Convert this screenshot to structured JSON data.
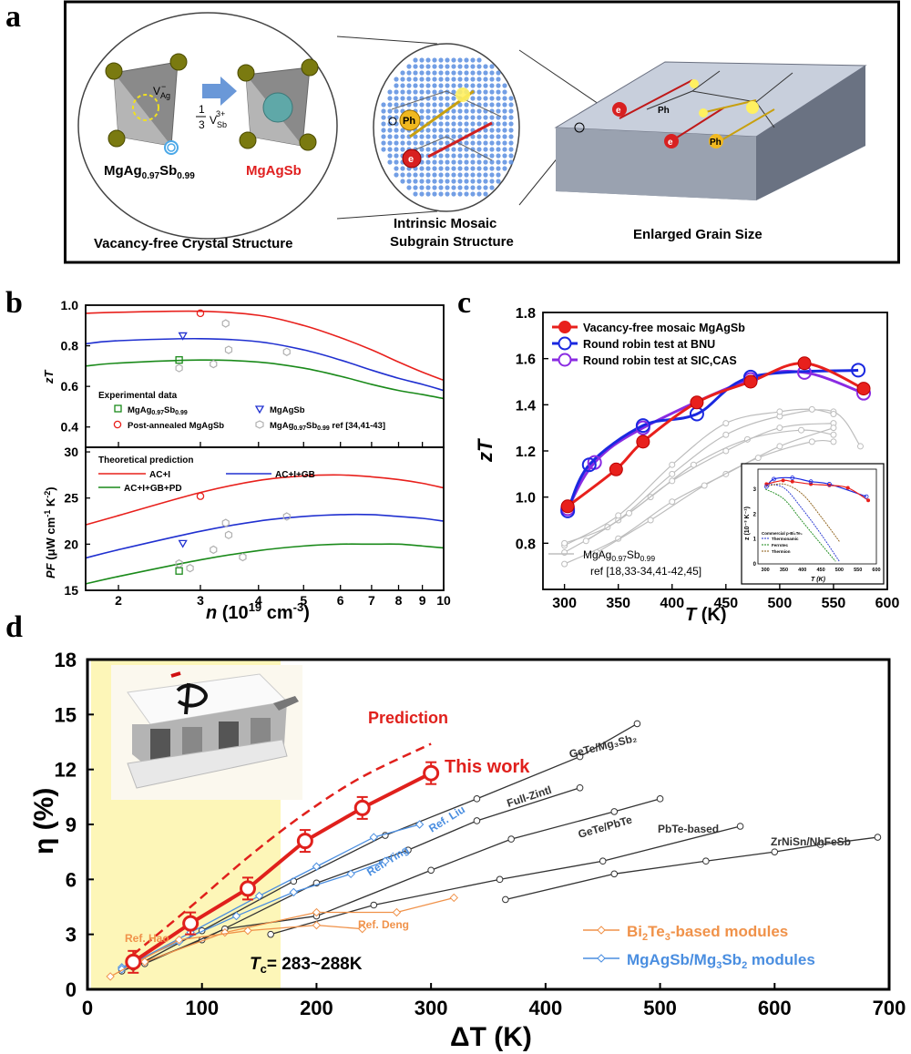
{
  "panels": {
    "a": "a",
    "b": "b",
    "c": "c",
    "d": "d"
  },
  "panel_a": {
    "vacancy_label": "V",
    "vacancy_sub": "Ag",
    "vacancy_sup": "−",
    "fraction_num": "1",
    "fraction_den": "3",
    "sb_vacancy_label": "V",
    "sb_vacancy_sub": "Sb",
    "sb_vacancy_sup": "3+",
    "compound_left_1": "MgAg",
    "compound_left_2": "0.97",
    "compound_left_3": "Sb",
    "compound_left_4": "0.99",
    "compound_right": "MgAgSb",
    "phonon": "Ph",
    "electron": "e",
    "caption_left": "Vacancy-free Crystal Structure",
    "caption_mid_1": "Intrinsic Mosaic",
    "caption_mid_2": "Subgrain Structure",
    "caption_right": "Enlarged Grain Size",
    "colors": {
      "right_compound": "#e02020",
      "atom": "#7a7a10",
      "grain": "#b8c2d6"
    }
  },
  "panel_b": {
    "top_ylabel": "zT",
    "top_yticks": [
      "0.4",
      "0.6",
      "0.8",
      "1.0"
    ],
    "legend_title": "Experimental data",
    "legend_items": [
      "MgAg0.97Sb0.99",
      "Post-annealed MgAgSb",
      "MgAgSb",
      "MgAg0.97Sb0.99 ref [34,41-43]"
    ],
    "legend_sq_1": "MgAg",
    "legend_sq_2": "0.97",
    "legend_sq_3": "Sb",
    "legend_sq_4": "0.99",
    "legend_circ": "Post-annealed MgAgSb",
    "legend_tri": "MgAgSb",
    "legend_hex_1": "MgAg",
    "legend_hex_2": "0.97",
    "legend_hex_3": "Sb",
    "legend_hex_4": "0.99",
    "legend_hex_5": " ref [34,41-43]",
    "bottom_title": "Theoretical prediction",
    "bottom_items": [
      "AC+I",
      "AC+I+GB",
      "AC+I+GB+PD"
    ],
    "bottom_ylabel_1": "PF",
    "bottom_ylabel_2": " (μW cm",
    "bottom_ylabel_3": "-1",
    "bottom_ylabel_4": " K",
    "bottom_ylabel_5": "-2",
    "bottom_ylabel_6": ")",
    "bottom_yticks": [
      "15",
      "20",
      "25",
      "30"
    ],
    "xticks": [
      "2",
      "3",
      "4",
      "5",
      "6",
      "7",
      "8",
      "9",
      "10"
    ],
    "xlabel_1": "n",
    "xlabel_2": " (10",
    "xlabel_3": "19",
    "xlabel_4": " cm",
    "xlabel_5": "-3",
    "xlabel_6": ")",
    "colors": {
      "ac_i": "#e8201c",
      "ac_i_gb": "#2030d0",
      "ac_i_gb_pd": "#1a8a1a",
      "ref": "#b0b0b0"
    }
  },
  "panel_c": {
    "ylabel": "zT",
    "xlabel": "T (K)",
    "xlabel_T": "T",
    "xlabel_K": " (K)",
    "yticks": [
      "0.8",
      "1.0",
      "1.2",
      "1.4",
      "1.6",
      "1.8"
    ],
    "xticks": [
      "300",
      "350",
      "400",
      "450",
      "500",
      "550",
      "600"
    ],
    "legend": [
      "Vacancy-free mosaic MgAgSb",
      "Round robin test at BNU",
      "Round robin test at SIC,CAS"
    ],
    "ref_label_1": "MgAg",
    "ref_label_2": "0.97",
    "ref_label_3": "Sb",
    "ref_label_4": "0.99",
    "ref_label_5": "ref [18,33-34,41-42,45]",
    "inset_ylabel": "z (10⁻³ K⁻¹)",
    "inset_xlabel": "T (K)",
    "inset_yticks": [
      "0",
      "1",
      "2",
      "3"
    ],
    "inset_xticks": [
      "300",
      "350",
      "400",
      "450",
      "500",
      "550",
      "600"
    ],
    "inset_legend": [
      "Commercial p-Bi₂Te₃",
      "Thermonamic",
      "Ferrotec",
      "Thermion"
    ],
    "colors": {
      "red": "#e8201c",
      "blue": "#1a28e0",
      "purple": "#8a2be2",
      "grey": "#bdbdbd"
    }
  },
  "panel_d": {
    "ylabel": "η (%)",
    "xlabel": "ΔT (K)",
    "yticks": [
      "0",
      "3",
      "6",
      "9",
      "12",
      "15",
      "18"
    ],
    "xticks": [
      "0",
      "100",
      "200",
      "300",
      "400",
      "500",
      "600",
      "700"
    ],
    "prediction": "Prediction",
    "this_work": "This work",
    "tc_1": "T",
    "tc_2": "c",
    "tc_3": "= 283~288K",
    "labels": [
      "GeTe/Mg₃Sb₂",
      "Full-Zintl",
      "GeTe/PbTe",
      "PbTe-based",
      "ZrNiSn/NbFeSb",
      "Ref. Ying",
      "Ref. Liu",
      "Ref. Deng",
      "Ref. Hao"
    ],
    "legend_bi_1": "Bi",
    "legend_bi_2": "2",
    "legend_bi_3": "Te",
    "legend_bi_4": "3",
    "legend_bi_5": "-based modules",
    "legend_mg_1": "MgAgSb/Mg",
    "legend_mg_2": "3",
    "legend_mg_3": "Sb",
    "legend_mg_4": "2",
    "legend_mg_5": " modules",
    "colors": {
      "red": "#e0201c",
      "orange": "#f0924a",
      "blue": "#4a8ee0",
      "black": "#333333",
      "highlight": "#fdf6b8"
    }
  },
  "chart_data": [
    {
      "type": "line",
      "title": "",
      "xlabel": "n (10^19 cm^-3)",
      "ylabel": "zT",
      "xscale": "log",
      "xlim": [
        1.7,
        10
      ],
      "ylim": [
        0.3,
        1.0
      ],
      "series": [
        {
          "name": "AC+I",
          "x": [
            1.7,
            2,
            3,
            4,
            5,
            6,
            7,
            8,
            9,
            10
          ],
          "values": [
            0.96,
            0.965,
            0.97,
            0.95,
            0.9,
            0.84,
            0.78,
            0.72,
            0.67,
            0.63
          ]
        },
        {
          "name": "AC+I+GB",
          "x": [
            1.7,
            2,
            3,
            4,
            5,
            6,
            7,
            8,
            9,
            10
          ],
          "values": [
            0.81,
            0.825,
            0.835,
            0.82,
            0.78,
            0.73,
            0.68,
            0.64,
            0.61,
            0.58
          ]
        },
        {
          "name": "AC+I+GB+PD",
          "x": [
            1.7,
            2,
            3,
            4,
            5,
            6,
            7,
            8,
            9,
            10
          ],
          "values": [
            0.7,
            0.715,
            0.73,
            0.72,
            0.69,
            0.65,
            0.61,
            0.58,
            0.56,
            0.54
          ]
        },
        {
          "name": "MgAg0.97Sb0.99",
          "x": [
            2.7
          ],
          "values": [
            0.73
          ]
        },
        {
          "name": "Post-annealed MgAgSb",
          "x": [
            3.0
          ],
          "values": [
            0.96
          ]
        },
        {
          "name": "MgAgSb",
          "x": [
            2.75
          ],
          "values": [
            0.85
          ]
        },
        {
          "name": "MgAg0.97Sb0.99 ref [34,41-43]",
          "x": [
            2.7,
            3.2,
            3.4,
            3.45,
            4.6
          ],
          "values": [
            0.69,
            0.71,
            0.91,
            0.78,
            0.77
          ]
        }
      ]
    },
    {
      "type": "line",
      "title": "",
      "xlabel": "n (10^19 cm^-3)",
      "ylabel": "PF (μW cm^-1 K^-2)",
      "xscale": "log",
      "xlim": [
        1.7,
        10
      ],
      "ylim": [
        15,
        30
      ],
      "series": [
        {
          "name": "AC+I",
          "x": [
            1.7,
            2,
            3,
            4,
            5,
            6,
            7,
            8,
            9,
            10
          ],
          "values": [
            22.1,
            23.1,
            25.6,
            26.9,
            27.4,
            27.5,
            27.3,
            27.0,
            26.6,
            26.1
          ]
        },
        {
          "name": "AC+I+GB",
          "x": [
            1.7,
            2,
            3,
            4,
            5,
            6,
            7,
            8,
            9,
            10
          ],
          "values": [
            18.5,
            19.4,
            21.4,
            22.5,
            23.0,
            23.2,
            23.2,
            23.0,
            22.8,
            22.5
          ]
        },
        {
          "name": "AC+I+GB+PD",
          "x": [
            1.7,
            2,
            3,
            4,
            5,
            6,
            7,
            8,
            9,
            10
          ],
          "values": [
            15.7,
            16.5,
            18.3,
            19.3,
            19.8,
            20.0,
            20.0,
            20.0,
            19.8,
            19.6
          ]
        },
        {
          "name": "MgAg0.97Sb0.99",
          "x": [
            2.7
          ],
          "values": [
            17.1
          ]
        },
        {
          "name": "Post-annealed MgAgSb",
          "x": [
            3.0
          ],
          "values": [
            25.2
          ]
        },
        {
          "name": "MgAgSb",
          "x": [
            2.75
          ],
          "values": [
            20.1
          ]
        },
        {
          "name": "MgAg0.97Sb0.99 ref [34,41-43]",
          "x": [
            2.7,
            2.85,
            3.2,
            3.4,
            3.45,
            3.7,
            4.6
          ],
          "values": [
            17.9,
            17.4,
            19.4,
            22.3,
            21.0,
            18.6,
            23.0
          ]
        }
      ]
    },
    {
      "type": "line",
      "title": "",
      "xlabel": "T (K)",
      "ylabel": "zT",
      "xlim": [
        280,
        600
      ],
      "ylim": [
        0.6,
        1.8
      ],
      "series": [
        {
          "name": "Vacancy-free mosaic MgAgSb",
          "x": [
            303,
            348,
            373,
            423,
            473,
            523,
            578
          ],
          "values": [
            0.96,
            1.12,
            1.24,
            1.41,
            1.5,
            1.58,
            1.47
          ]
        },
        {
          "name": "Round robin test at BNU",
          "x": [
            303,
            323,
            373,
            423,
            473,
            573
          ],
          "values": [
            0.94,
            1.14,
            1.31,
            1.36,
            1.52,
            1.55
          ]
        },
        {
          "name": "Round robin test at SIC,CAS",
          "x": [
            303,
            328,
            373,
            473,
            523,
            578
          ],
          "values": [
            0.95,
            1.15,
            1.3,
            1.51,
            1.54,
            1.45
          ]
        }
      ]
    },
    {
      "type": "line",
      "title": "",
      "xlabel": "ΔT (K)",
      "ylabel": "η (%)",
      "xlim": [
        0,
        700
      ],
      "ylim": [
        0,
        18
      ],
      "series": [
        {
          "name": "This work",
          "x": [
            40,
            90,
            140,
            190,
            240,
            300
          ],
          "values": [
            1.5,
            3.6,
            5.5,
            8.1,
            9.9,
            11.8
          ]
        },
        {
          "name": "Prediction",
          "x": [
            40,
            90,
            140,
            190,
            240,
            300
          ],
          "values": [
            1.9,
            4.5,
            7.2,
            9.6,
            11.6,
            13.4
          ]
        },
        {
          "name": "GeTe/Mg3Sb2",
          "x": [
            40,
            100,
            180,
            260,
            340,
            430,
            480
          ],
          "values": [
            1.2,
            3.2,
            5.9,
            8.4,
            10.4,
            12.7,
            14.5
          ]
        },
        {
          "name": "Full-Zintl",
          "x": [
            30,
            100,
            200,
            280,
            340,
            430
          ],
          "values": [
            1.0,
            2.7,
            5.8,
            7.6,
            9.2,
            11.0
          ]
        },
        {
          "name": "GeTe/PbTe",
          "x": [
            50,
            120,
            200,
            300,
            370,
            460,
            500
          ],
          "values": [
            1.4,
            3.3,
            4.0,
            6.5,
            8.2,
            9.7,
            10.4
          ]
        },
        {
          "name": "PbTe-based",
          "x": [
            160,
            250,
            360,
            450,
            570
          ],
          "values": [
            3.0,
            4.6,
            6.0,
            7.0,
            8.9
          ]
        },
        {
          "name": "ZrNiSn/NbFeSb",
          "x": [
            365,
            460,
            540,
            600,
            640,
            690
          ],
          "values": [
            4.9,
            6.3,
            7.0,
            7.5,
            7.9,
            8.3
          ]
        },
        {
          "name": "Ref. Ying",
          "x": [
            30,
            80,
            130,
            180,
            230,
            260
          ],
          "values": [
            1.2,
            2.6,
            4.0,
            5.3,
            6.3,
            7.0
          ]
        },
        {
          "name": "Ref. Liu",
          "x": [
            30,
            90,
            150,
            200,
            250,
            290
          ],
          "values": [
            1.1,
            3.1,
            5.1,
            6.7,
            8.3,
            9.0
          ]
        },
        {
          "name": "Ref. Deng",
          "x": [
            50,
            120,
            200,
            270,
            320
          ],
          "values": [
            1.5,
            3.1,
            4.2,
            4.2,
            5.0
          ]
        },
        {
          "name": "Ref. Hao",
          "x": [
            20,
            80,
            140,
            200,
            240
          ],
          "values": [
            0.7,
            2.7,
            3.2,
            3.5,
            3.3
          ]
        }
      ]
    }
  ]
}
